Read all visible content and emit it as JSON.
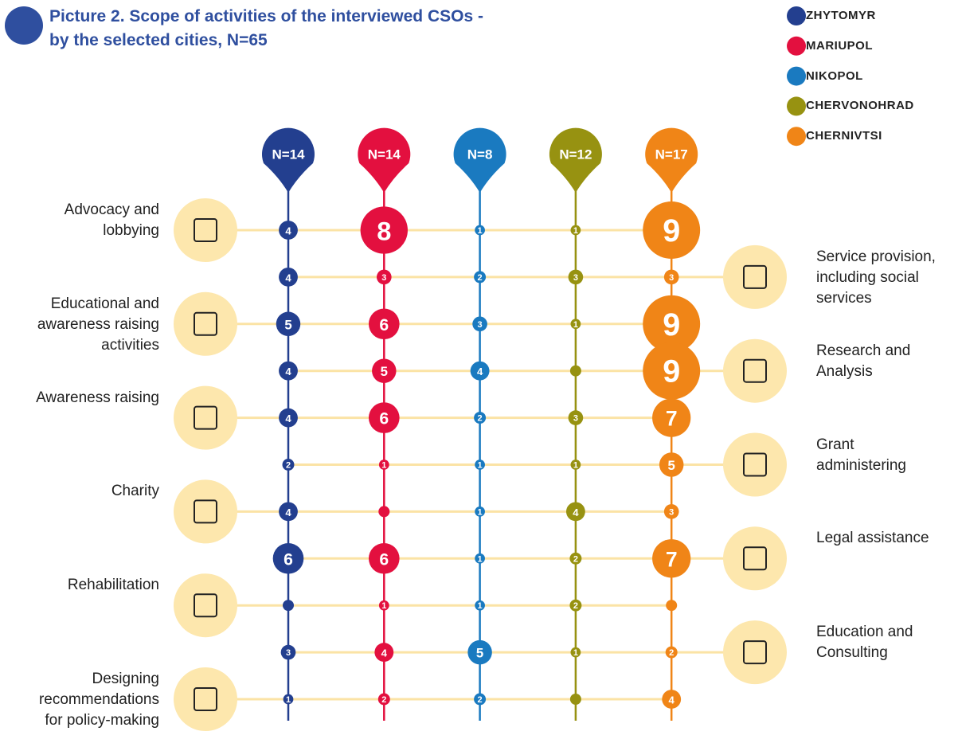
{
  "chart_data": {
    "type": "bubble-grid",
    "title": "Picture 2. Scope of activities of the interviewed CSOs - by the selected cities, N=65",
    "categories": [
      "Advocacy and lobbying",
      "Service provision, including social services",
      "Educational and awareness raising activities",
      "Research and Analysis",
      "Awareness raising",
      "Grant administering",
      "Charity",
      "Legal assistance",
      "Rehabilitation",
      "Education and Consulting",
      "Designing recommendations for policy-making"
    ],
    "series": [
      {
        "name": "ZHYTOMYR",
        "n_label": "N=14",
        "color": "#233f8f",
        "values": [
          4,
          4,
          5,
          4,
          4,
          2,
          4,
          6,
          null,
          3,
          1
        ]
      },
      {
        "name": "MARIUPOL",
        "n_label": "N=14",
        "color": "#e3103f",
        "values": [
          8,
          3,
          6,
          5,
          6,
          1,
          null,
          6,
          1,
          4,
          2
        ]
      },
      {
        "name": "NIKOPOL",
        "n_label": "N=8",
        "color": "#1a7ac0",
        "values": [
          1,
          2,
          3,
          4,
          2,
          1,
          1,
          1,
          1,
          5,
          2
        ]
      },
      {
        "name": "CHERVONOHRAD",
        "n_label": "N=12",
        "color": "#979211",
        "values": [
          1,
          3,
          1,
          null,
          3,
          1,
          4,
          2,
          2,
          1,
          null
        ]
      },
      {
        "name": "CHERNIVTSI",
        "n_label": "N=17",
        "color": "#f08517",
        "values": [
          9,
          3,
          9,
          9,
          7,
          5,
          3,
          7,
          null,
          2,
          4
        ]
      }
    ]
  }
}
